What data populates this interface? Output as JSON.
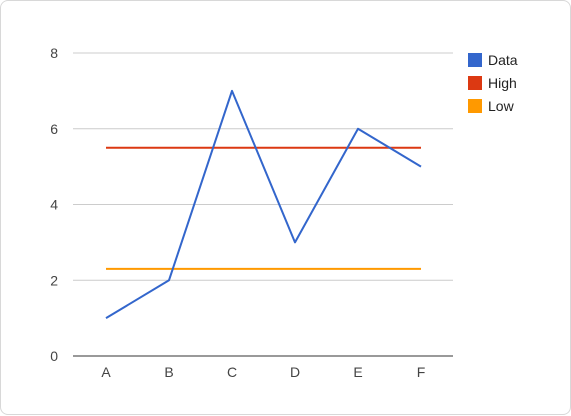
{
  "chart_data": {
    "type": "line",
    "categories": [
      "A",
      "B",
      "C",
      "D",
      "E",
      "F"
    ],
    "series": [
      {
        "name": "Data",
        "values": [
          1,
          2,
          7,
          3,
          6,
          5
        ],
        "color": "#3366cc"
      },
      {
        "name": "High",
        "values": [
          5.5,
          5.5,
          5.5,
          5.5,
          5.5,
          5.5
        ],
        "color": "#dc3912"
      },
      {
        "name": "Low",
        "values": [
          2.3,
          2.3,
          2.3,
          2.3,
          2.3,
          2.3
        ],
        "color": "#ff9900"
      }
    ],
    "yticks": [
      "0",
      "2",
      "4",
      "6",
      "8"
    ],
    "ylim": [
      0,
      8
    ],
    "grid": true,
    "legend_position": "right",
    "title": "",
    "xlabel": "",
    "ylabel": ""
  }
}
